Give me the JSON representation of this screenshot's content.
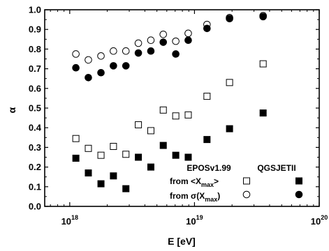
{
  "chart_data": {
    "type": "scatter",
    "xlabel": "E [eV]",
    "ylabel": "α",
    "xscale": "log",
    "xlim": [
      6.3e+17,
      1e+20
    ],
    "ylim": [
      0.0,
      1.0
    ],
    "x_ticks": [
      1e+18,
      1e+19,
      1e+20
    ],
    "x_tick_labels": [
      {
        "base": "10",
        "exp": "18"
      },
      {
        "base": "10",
        "exp": "19"
      },
      {
        "base": "10",
        "exp": "20"
      }
    ],
    "y_ticks": [
      "0.0",
      "0.1",
      "0.2",
      "0.3",
      "0.4",
      "0.5",
      "0.6",
      "0.7",
      "0.8",
      "0.9",
      "1.0"
    ],
    "grid": false,
    "legend": {
      "placement": "bottom-right",
      "col_headers": [
        "EPOSv1.99",
        "QGSJETII"
      ],
      "rows": [
        {
          "prefix": "from <X",
          "sub": "max",
          "suffix": ">"
        },
        {
          "prefix": "from σ(X",
          "sub": "max",
          "suffix": ")"
        }
      ]
    },
    "series": [
      {
        "marker": "open-square",
        "x": [
          1.12e+18,
          1.41e+18,
          1.78e+18,
          2.24e+18,
          2.82e+18,
          3.55e+18,
          4.47e+18,
          5.62e+18,
          7.08e+18,
          8.91e+18,
          1.26e+19,
          1.91e+19,
          3.55e+19
        ],
        "values": [
          0.345,
          0.295,
          0.26,
          0.305,
          0.265,
          0.415,
          0.385,
          0.49,
          0.46,
          0.465,
          0.56,
          0.63,
          0.725
        ]
      },
      {
        "marker": "filled-square",
        "x": [
          1.12e+18,
          1.41e+18,
          1.78e+18,
          2.24e+18,
          2.82e+18,
          3.55e+18,
          4.47e+18,
          5.62e+18,
          7.08e+18,
          8.91e+18,
          1.26e+19,
          1.91e+19,
          3.55e+19
        ],
        "values": [
          0.245,
          0.17,
          0.115,
          0.155,
          0.09,
          0.25,
          0.2,
          0.31,
          0.26,
          0.25,
          0.34,
          0.395,
          0.475
        ]
      },
      {
        "marker": "open-circle",
        "x": [
          1.12e+18,
          1.41e+18,
          1.78e+18,
          2.24e+18,
          2.82e+18,
          3.55e+18,
          4.47e+18,
          5.62e+18,
          7.08e+18,
          8.91e+18,
          1.26e+19,
          1.91e+19,
          3.55e+19
        ],
        "values": [
          0.775,
          0.745,
          0.765,
          0.79,
          0.79,
          0.83,
          0.845,
          0.875,
          0.84,
          0.88,
          0.925,
          0.96,
          0.97
        ]
      },
      {
        "marker": "filled-circle",
        "x": [
          1.12e+18,
          1.41e+18,
          1.78e+18,
          2.24e+18,
          2.82e+18,
          3.55e+18,
          4.47e+18,
          5.62e+18,
          7.08e+18,
          8.91e+18,
          1.26e+19,
          1.91e+19,
          3.55e+19
        ],
        "values": [
          0.705,
          0.655,
          0.68,
          0.715,
          0.715,
          0.78,
          0.79,
          0.835,
          0.775,
          0.845,
          0.905,
          0.955,
          0.965
        ]
      }
    ]
  }
}
